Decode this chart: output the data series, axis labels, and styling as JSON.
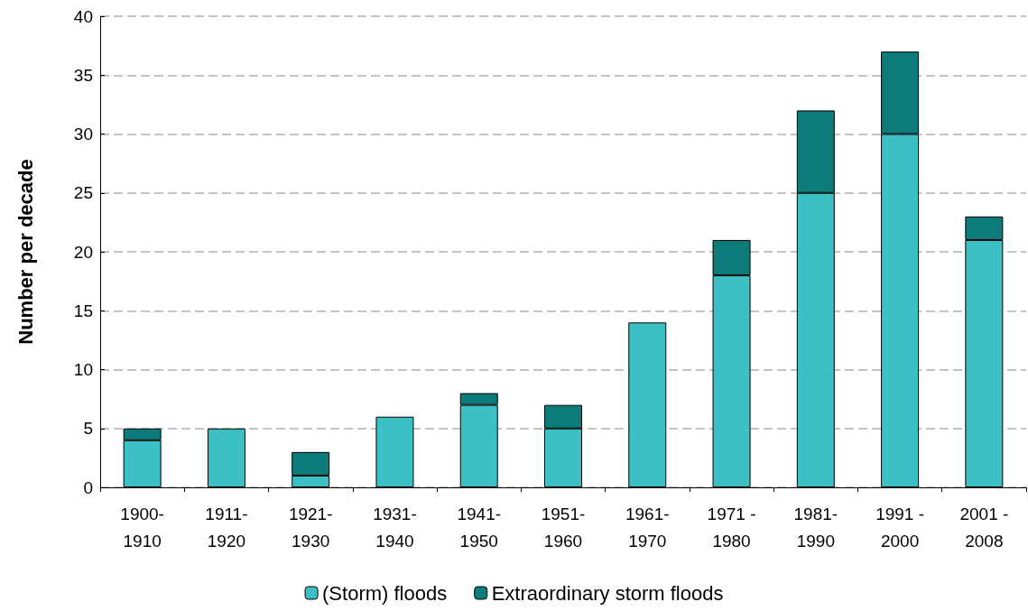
{
  "chart_data": {
    "type": "bar",
    "stacked": true,
    "ylabel": "Number per decade",
    "categories": [
      "1900-\n1910",
      "1911-\n1920",
      "1921-\n1930",
      "1931-\n1940",
      "1941-\n1950",
      "1951-\n1960",
      "1961-\n1970",
      "1971 -\n1980",
      "1981-\n1990",
      "1991 -\n2000",
      "2001 -\n2008"
    ],
    "series": [
      {
        "name": "(Storm) floods",
        "color": "#3cc0c4",
        "values": [
          4,
          5,
          1,
          6,
          7,
          5,
          14,
          18,
          25,
          30,
          21
        ]
      },
      {
        "name": "Extraordinary storm floods",
        "color": "#0e7b7b",
        "values": [
          1,
          0,
          2,
          0,
          1,
          2,
          0,
          3,
          7,
          7,
          2
        ]
      }
    ],
    "ylim": [
      0,
      40
    ],
    "yticks": [
      0,
      5,
      10,
      15,
      20,
      25,
      30,
      35,
      40
    ],
    "grid": "y",
    "legend": "bottom"
  }
}
